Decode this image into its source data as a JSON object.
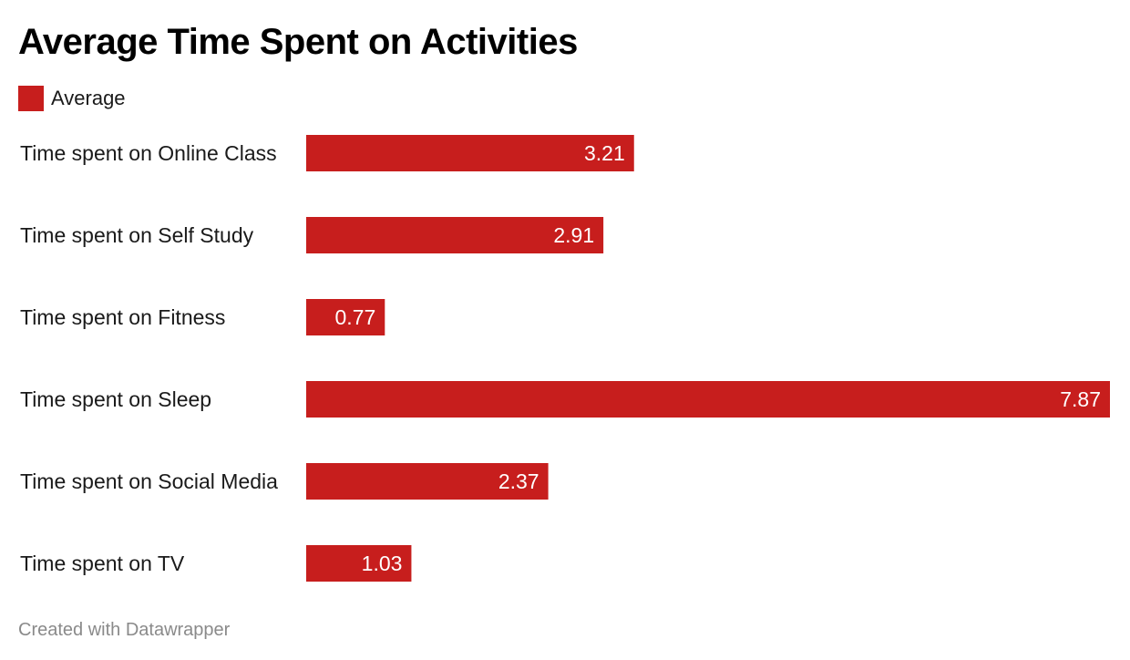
{
  "chart_data": {
    "type": "bar",
    "orientation": "horizontal",
    "title": "Average Time Spent on Activities",
    "legend": {
      "label": "Average",
      "placement": "top-left"
    },
    "categories": [
      "Time spent on Online Class",
      "Time spent on Self Study",
      "Time spent on Fitness",
      "Time spent on Sleep",
      "Time spent on Social Media",
      "Time spent on TV"
    ],
    "series": [
      {
        "name": "Average",
        "values": [
          3.21,
          2.91,
          0.77,
          7.87,
          2.37,
          1.03
        ],
        "color": "#c71e1d"
      }
    ],
    "value_labels": [
      "3.21",
      "2.91",
      "0.77",
      "7.87",
      "2.37",
      "1.03"
    ],
    "xlim": [
      0,
      7.87
    ],
    "grid": false
  },
  "footer": {
    "credit": "Created with Datawrapper"
  }
}
